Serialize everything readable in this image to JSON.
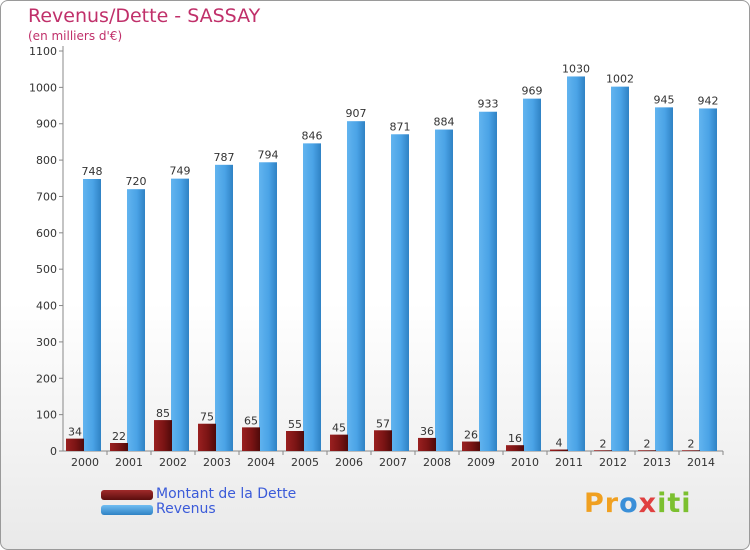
{
  "title": "Revenus/Dette - SASSAY",
  "subtitle": "(en milliers d'€)",
  "colors": {
    "debt": "#7a1414",
    "revenue": "#4aa3e6",
    "title": "#c0306a",
    "legend_text": "#3b5bd9"
  },
  "legend": {
    "items": [
      "Montant de la Dette",
      "Revenus"
    ]
  },
  "logo": {
    "text": "Proxiti"
  },
  "chart_data": {
    "type": "bar",
    "title": "Revenus/Dette - SASSAY",
    "subtitle": "(en milliers d'€)",
    "xlabel": "",
    "ylabel": "",
    "categories": [
      "2000",
      "2001",
      "2002",
      "2003",
      "2004",
      "2005",
      "2006",
      "2007",
      "2008",
      "2009",
      "2010",
      "2011",
      "2012",
      "2013",
      "2014"
    ],
    "series": [
      {
        "name": "Montant de la Dette",
        "values": [
          34,
          22,
          85,
          75,
          65,
          55,
          45,
          57,
          36,
          26,
          16,
          4,
          2,
          2,
          2
        ]
      },
      {
        "name": "Revenus",
        "values": [
          748,
          720,
          749,
          787,
          794,
          846,
          907,
          871,
          884,
          933,
          969,
          1030,
          1002,
          945,
          942
        ]
      }
    ],
    "ylim": [
      0,
      1100
    ],
    "yticks": [
      0,
      100,
      200,
      300,
      400,
      500,
      600,
      700,
      800,
      900,
      1000,
      1100
    ],
    "grid": false,
    "legend_position": "bottom-left"
  }
}
